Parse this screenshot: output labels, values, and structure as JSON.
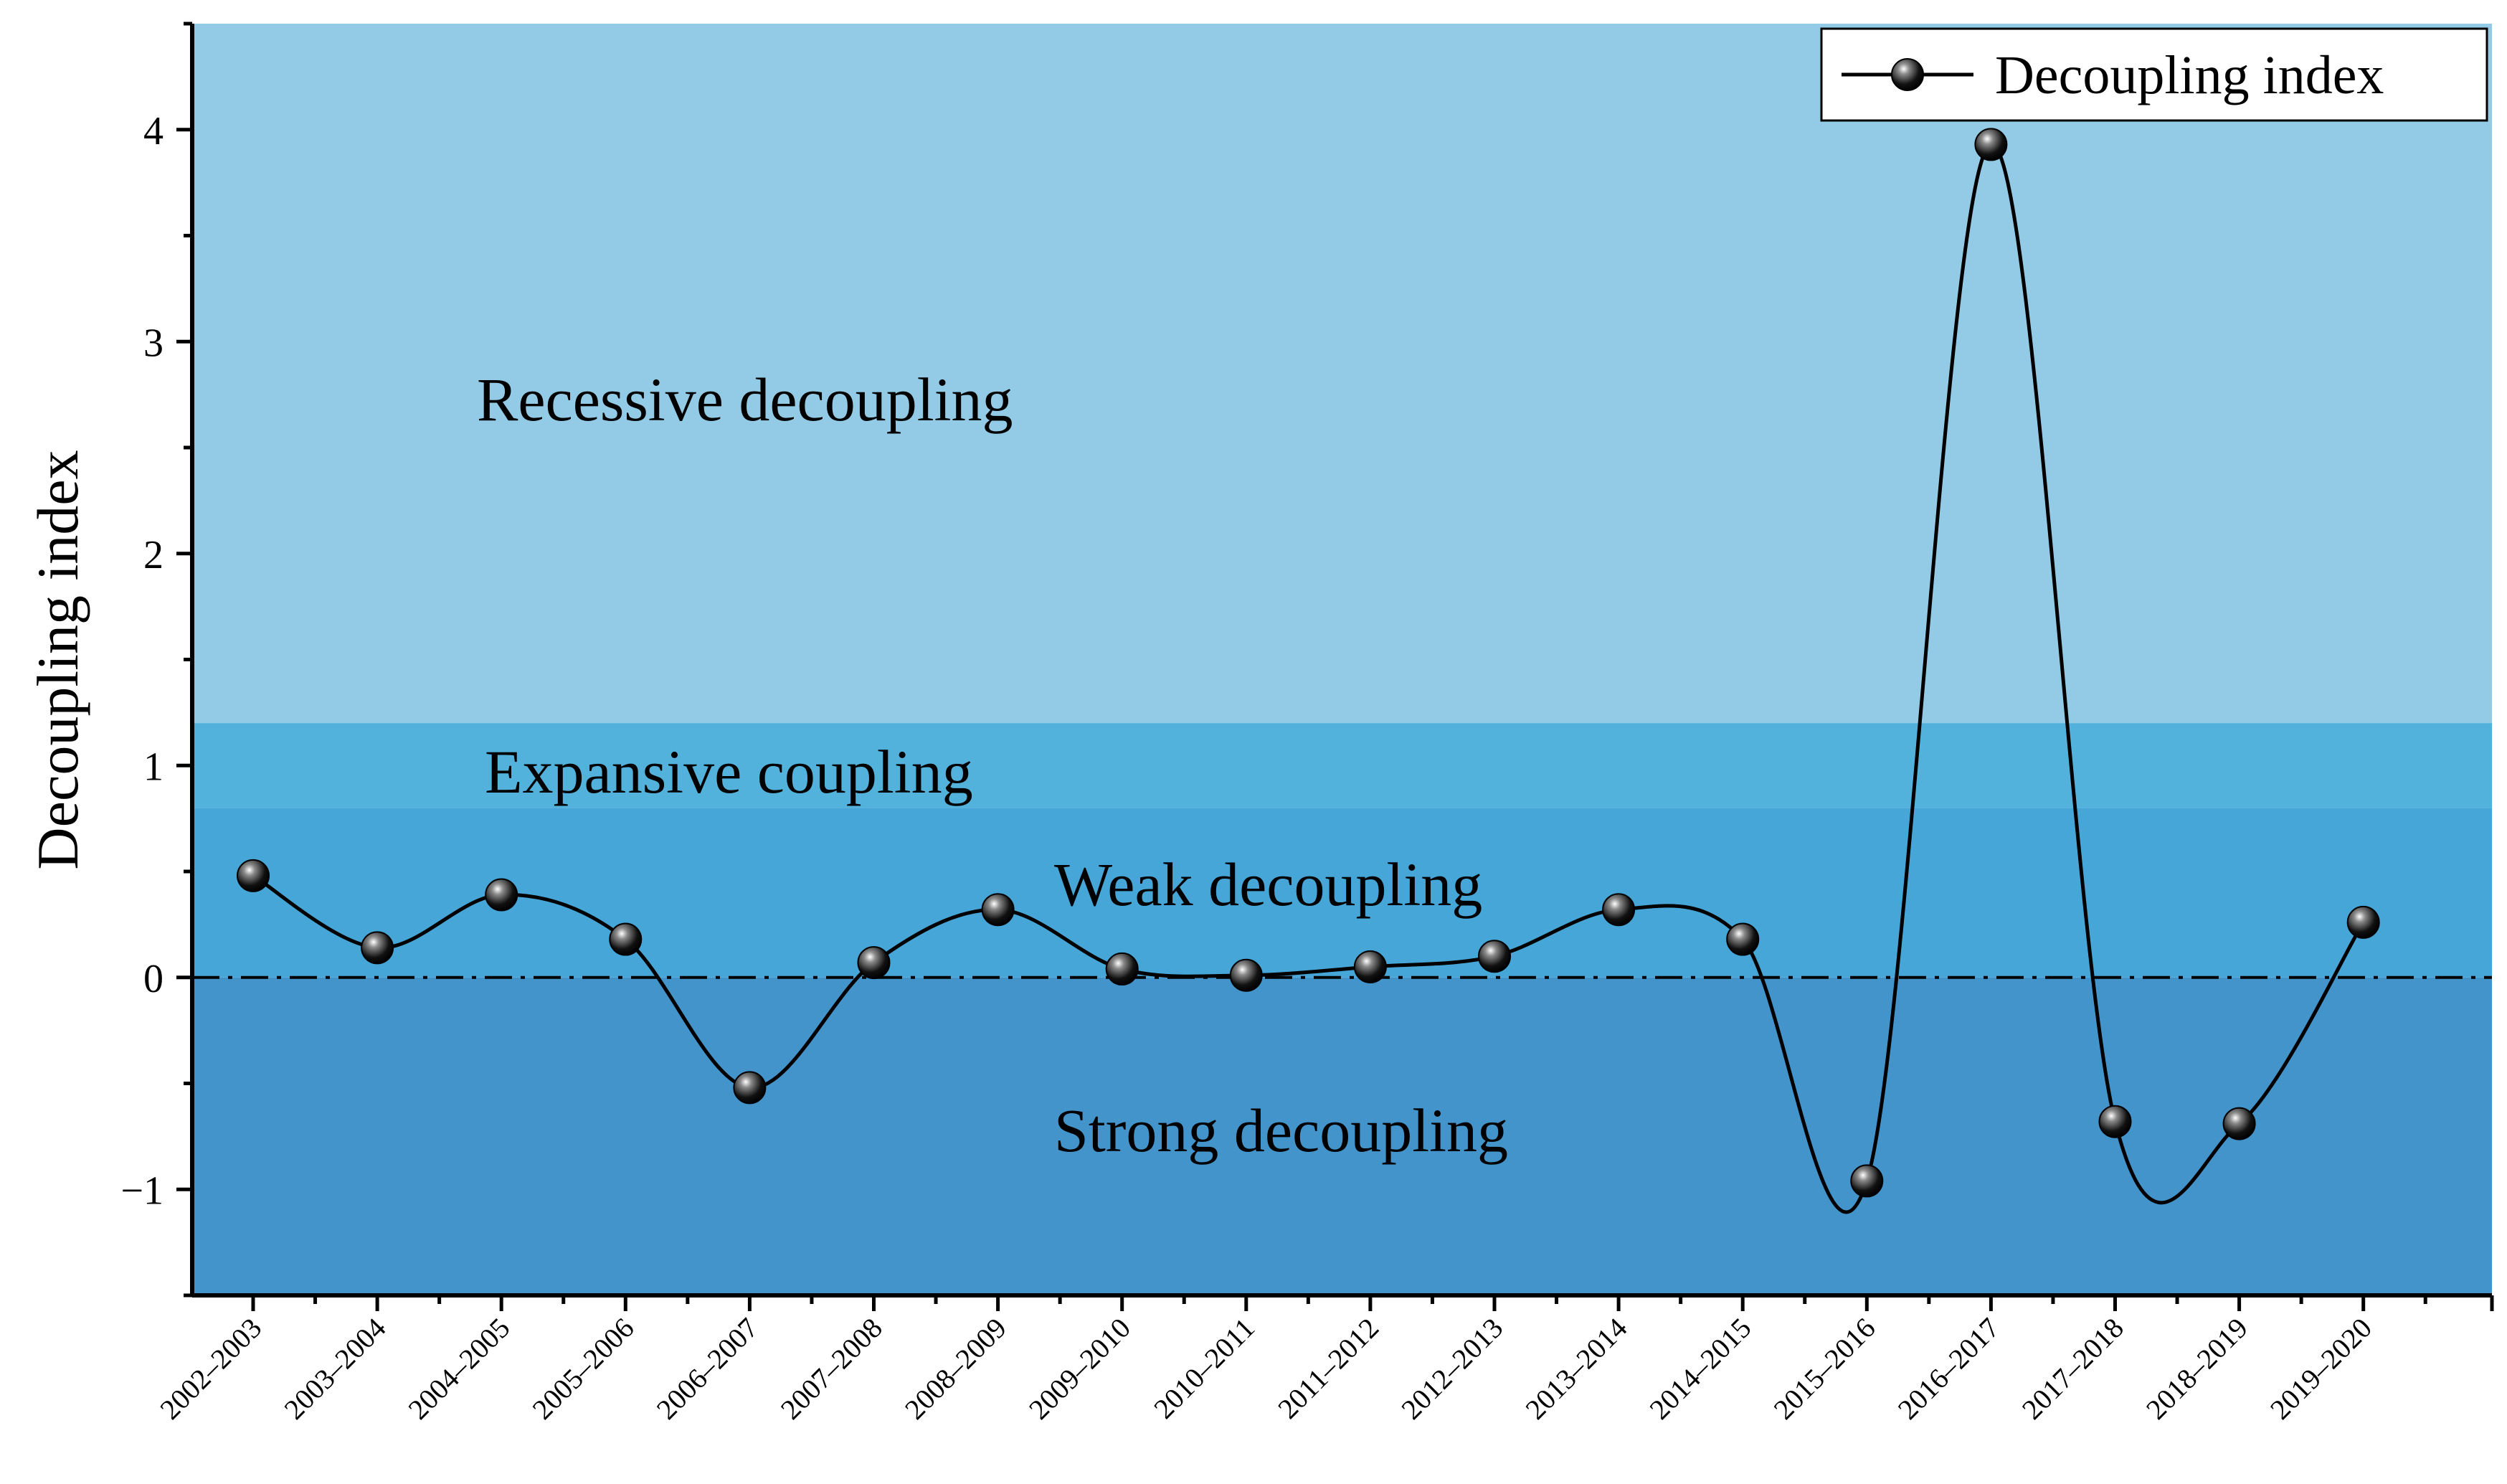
{
  "chart_data": {
    "type": "line",
    "ylabel": "Decoupling index",
    "xlabel": "",
    "ylim": [
      -1.5,
      4.5
    ],
    "yticks": [
      -1,
      0,
      1,
      2,
      3,
      4
    ],
    "ytick_labels": [
      "−1",
      "0",
      "1",
      "2",
      "3",
      "4"
    ],
    "categories": [
      "2002–2003",
      "2003–2004",
      "2004–2005",
      "2005–2006",
      "2006–2007",
      "2007–2008",
      "2008–2009",
      "2009–2010",
      "2010–2011",
      "2011–2012",
      "2012–2013",
      "2013–2014",
      "2014–2015",
      "2015–2016",
      "2016–2017",
      "2017–2018",
      "2018–2019",
      "2019–2020"
    ],
    "series": [
      {
        "name": "Decoupling index",
        "values": [
          0.48,
          0.14,
          0.39,
          0.18,
          -0.52,
          0.07,
          0.32,
          0.04,
          0.01,
          0.05,
          0.1,
          0.32,
          0.18,
          -0.96,
          3.93,
          -0.68,
          -0.69,
          0.26
        ],
        "color": "#000000",
        "smooth": true
      }
    ],
    "bands": [
      {
        "label": "Recessive decoupling",
        "from": 1.2,
        "to": 4.5,
        "color": "#93cbe6"
      },
      {
        "label": "Expansive coupling",
        "from": 0.8,
        "to": 1.2,
        "color": "#53b2dc"
      },
      {
        "label": "Weak decoupling",
        "from": 0,
        "to": 0.8,
        "color": "#45a6d7"
      },
      {
        "label": "Strong decoupling",
        "from": -1.5,
        "to": 0,
        "color": "#4394cb"
      }
    ],
    "reference_line": {
      "y": 0,
      "style": "dash-dot"
    },
    "legend": {
      "position": "top-right",
      "entries": [
        "Decoupling index"
      ]
    },
    "grid": false
  }
}
